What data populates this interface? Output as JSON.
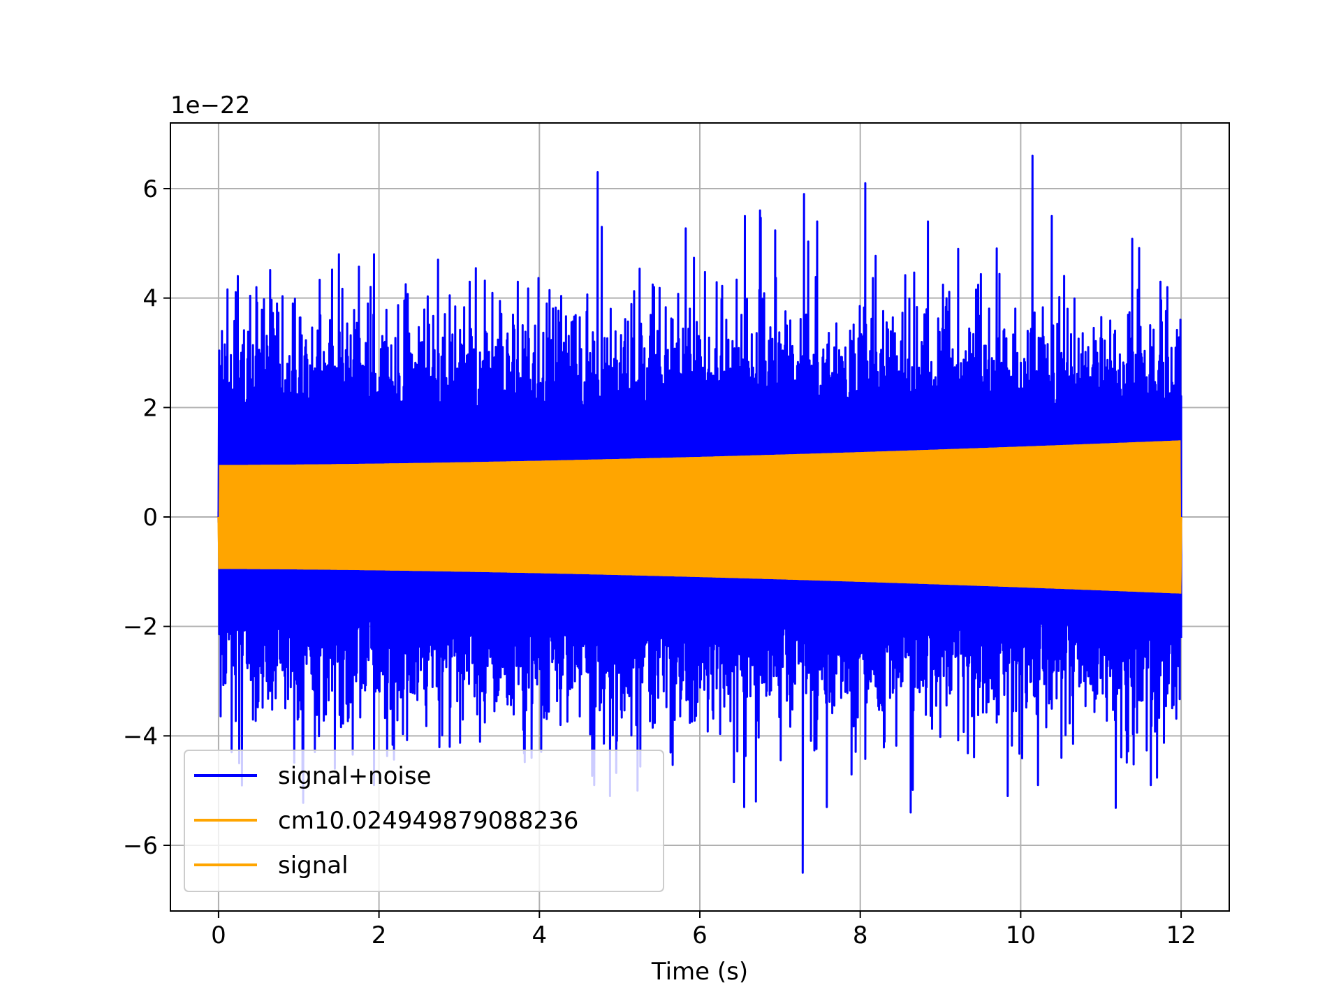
{
  "chart_data": {
    "type": "line",
    "title": "",
    "xlabel": "Time (s)",
    "ylabel": "",
    "offset_text": "1e−22",
    "xlim": [
      -0.6,
      12.6
    ],
    "ylim": [
      -7.2,
      7.2
    ],
    "xticks": [
      0,
      2,
      4,
      6,
      8,
      10,
      12
    ],
    "xtick_labels": [
      "0",
      "2",
      "4",
      "6",
      "8",
      "10",
      "12"
    ],
    "yticks": [
      -6,
      -4,
      -2,
      0,
      2,
      4,
      6
    ],
    "ytick_labels": [
      "−6",
      "−4",
      "−2",
      "0",
      "2",
      "4",
      "6"
    ],
    "grid": true,
    "legend_position": "lower-left",
    "series": [
      {
        "name": "signal+noise",
        "color": "#0000ff",
        "x_range": [
          0,
          12
        ],
        "description_values": {
          "typical_envelope_upper": [
            3.0,
            3.0,
            3.0,
            3.0,
            3.0,
            3.0,
            3.0
          ],
          "max_peak": 6.6,
          "min_peak": -6.5
        },
        "peaks": [
          {
            "x": 0.04,
            "y": 3.4
          },
          {
            "x": 0.24,
            "y": 4.4
          },
          {
            "x": 0.47,
            "y": 4.2
          },
          {
            "x": 0.73,
            "y": 3.9
          },
          {
            "x": 0.93,
            "y": 3.9
          },
          {
            "x": 1.5,
            "y": 4.8
          },
          {
            "x": 1.94,
            "y": 4.8
          },
          {
            "x": 2.74,
            "y": 4.7
          },
          {
            "x": 3.73,
            "y": 4.3
          },
          {
            "x": 4.73,
            "y": 6.3
          },
          {
            "x": 4.78,
            "y": 5.3
          },
          {
            "x": 5.43,
            "y": 4.2
          },
          {
            "x": 6.56,
            "y": 5.5
          },
          {
            "x": 6.75,
            "y": 5.6
          },
          {
            "x": 7.3,
            "y": 5.9
          },
          {
            "x": 7.46,
            "y": 5.4
          },
          {
            "x": 8.06,
            "y": 6.1
          },
          {
            "x": 8.84,
            "y": 5.4
          },
          {
            "x": 9.22,
            "y": 4.9
          },
          {
            "x": 10.15,
            "y": 6.6
          },
          {
            "x": 10.39,
            "y": 5.5
          },
          {
            "x": 11.74,
            "y": 4.3
          },
          {
            "x": 0.16,
            "y": -4.3
          },
          {
            "x": 0.26,
            "y": -4.5
          },
          {
            "x": 1.45,
            "y": -4.6
          },
          {
            "x": 1.94,
            "y": -4.9
          },
          {
            "x": 2.88,
            "y": -4.2
          },
          {
            "x": 3.9,
            "y": -4.4
          },
          {
            "x": 4.68,
            "y": -4.9
          },
          {
            "x": 4.88,
            "y": -5.1
          },
          {
            "x": 5.22,
            "y": -5.0
          },
          {
            "x": 6.55,
            "y": -5.3
          },
          {
            "x": 6.7,
            "y": -5.2
          },
          {
            "x": 7.28,
            "y": -6.5
          },
          {
            "x": 7.58,
            "y": -5.3
          },
          {
            "x": 8.63,
            "y": -5.4
          },
          {
            "x": 9.84,
            "y": -5.1
          },
          {
            "x": 10.22,
            "y": -4.9
          },
          {
            "x": 11.62,
            "y": -4.9
          }
        ]
      },
      {
        "name": "cm10.024949879088236",
        "color": "#ffa500",
        "x_range": [
          0,
          12
        ],
        "amplitude_start": 0.95,
        "amplitude_end": 1.4
      },
      {
        "name": "signal",
        "color": "#ffa500",
        "x_range": [
          0,
          12
        ],
        "amplitude_start": 0.95,
        "amplitude_end": 1.4
      }
    ]
  },
  "colors": {
    "axes_edge": "#000000",
    "grid": "#b0b0b0",
    "legend_edge": "#cccccc"
  }
}
